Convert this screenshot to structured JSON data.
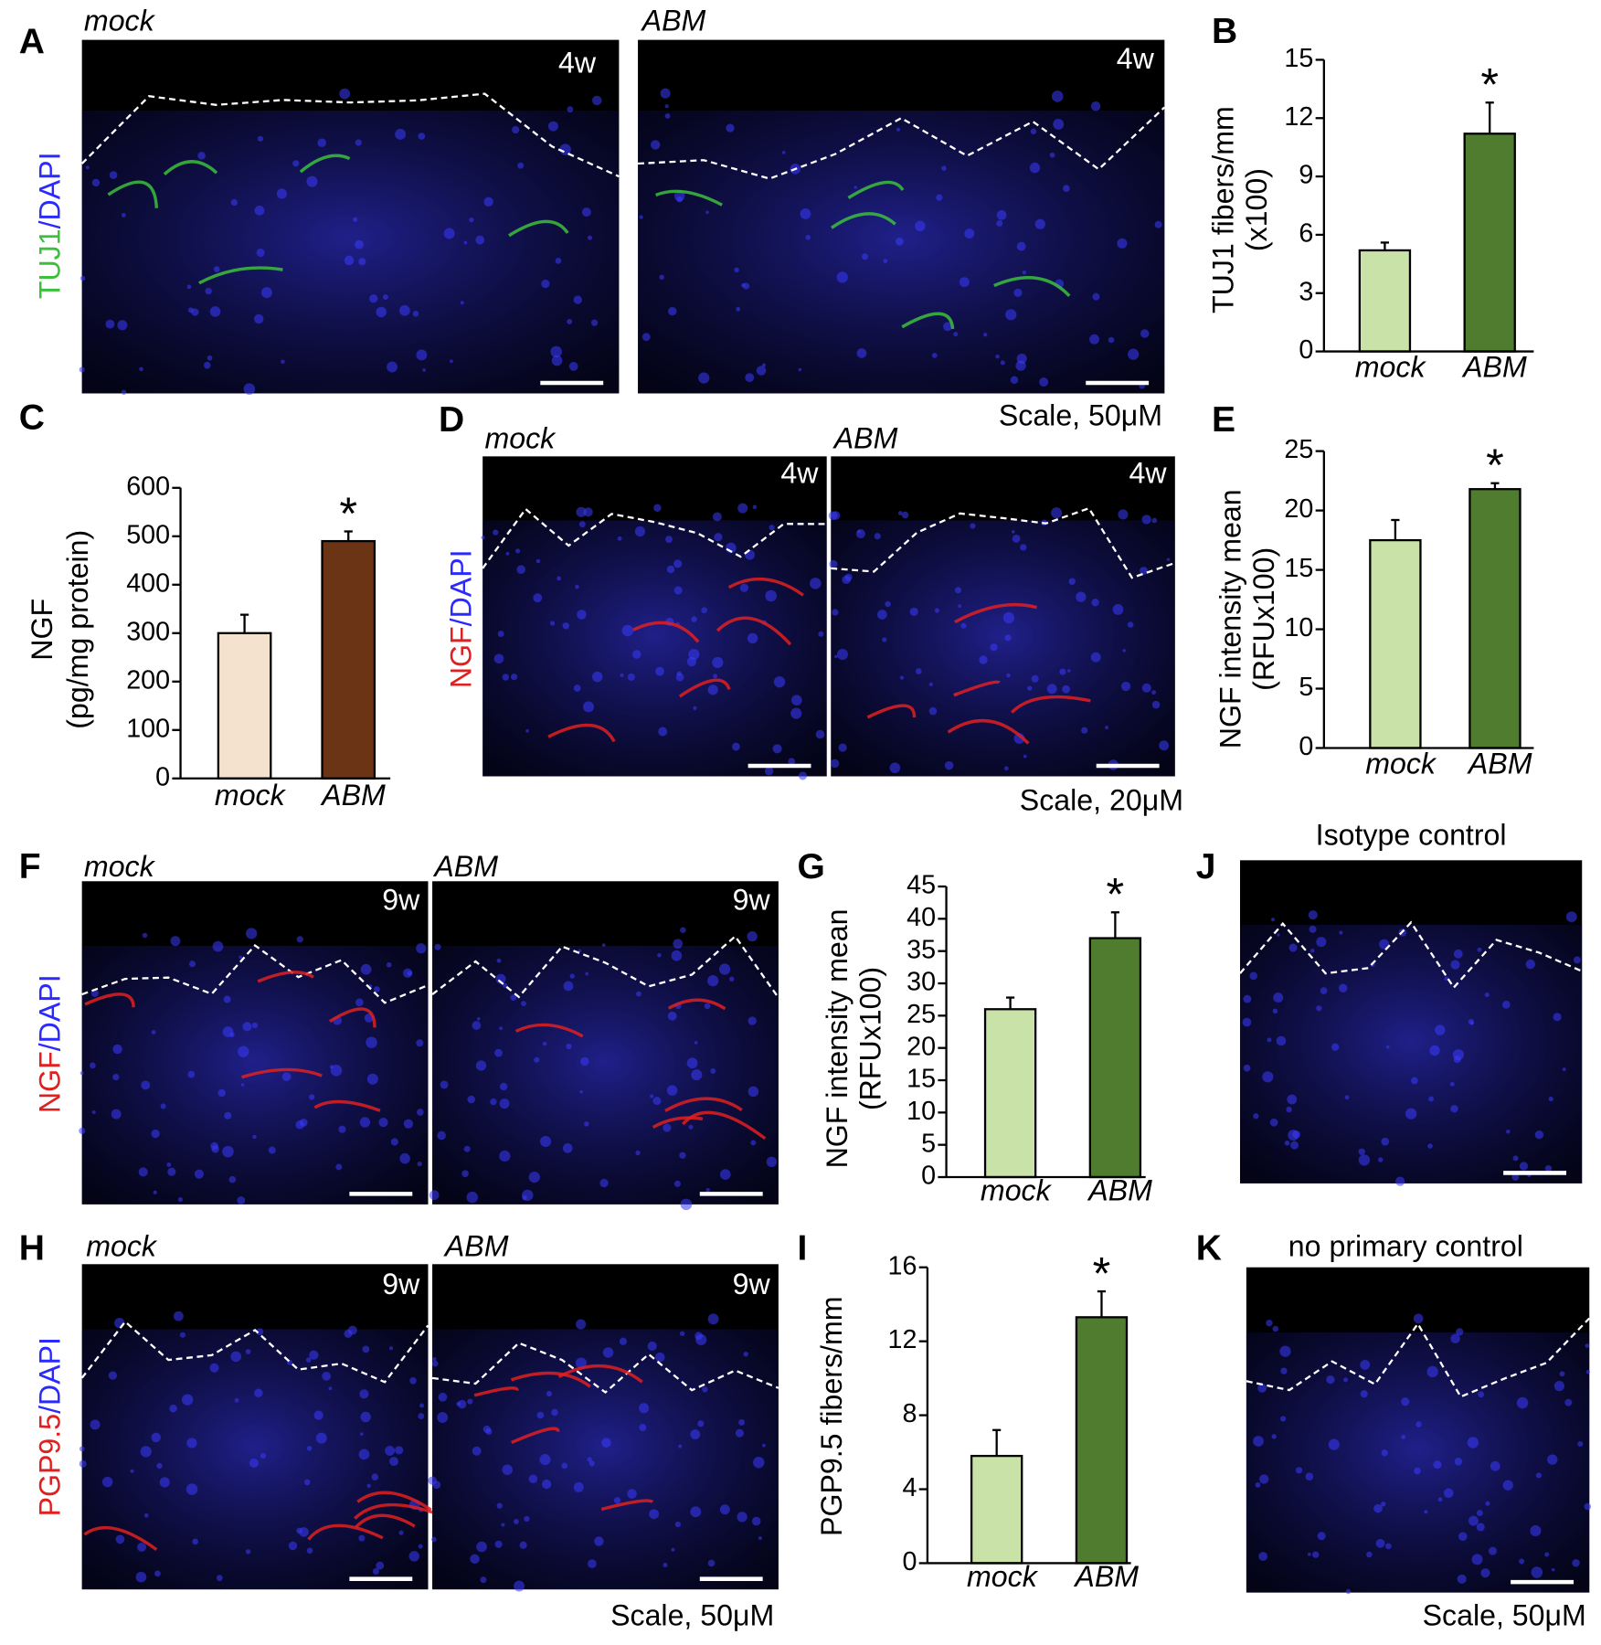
{
  "figure_panels": [
    {
      "panel": "A",
      "stain": [
        "TUJ1",
        "/DAPI"
      ],
      "marker_color": "#3cc03c",
      "images": [
        {
          "label": "mock",
          "time": "4w"
        },
        {
          "label": "ABM",
          "time": "4w"
        }
      ],
      "scale": "Scale, 50μM"
    },
    {
      "panel": "D",
      "stain": [
        "NGF",
        "/DAPI"
      ],
      "marker_color": "#e02020",
      "images": [
        {
          "label": "mock",
          "time": "4w"
        },
        {
          "label": "ABM",
          "time": "4w"
        }
      ],
      "scale": "Scale, 20μM"
    },
    {
      "panel": "F",
      "stain": [
        "NGF",
        "/DAPI"
      ],
      "marker_color": "#e02020",
      "images": [
        {
          "label": "mock",
          "time": "9w"
        },
        {
          "label": "ABM",
          "time": "9w"
        }
      ]
    },
    {
      "panel": "H",
      "stain": [
        "PGP9.5",
        "/DAPI"
      ],
      "marker_color": "#e02020",
      "images": [
        {
          "label": "mock",
          "time": "9w"
        },
        {
          "label": "ABM",
          "time": "9w"
        }
      ],
      "scale": "Scale, 50μM"
    },
    {
      "panel": "J",
      "title": "Isotype control"
    },
    {
      "panel": "K",
      "title": "no primary control",
      "scale": "Scale, 50μM"
    }
  ],
  "chart_data": [
    {
      "panel": "B",
      "type": "bar",
      "y_label": [
        "TUJ1 fibers/mm",
        "(x100)"
      ],
      "categories": [
        "mock",
        "ABM"
      ],
      "values": [
        5.2,
        11.2
      ],
      "errors": [
        0.4,
        1.6
      ],
      "colors": [
        "#c8e2a8",
        "#4f7c2e"
      ],
      "ylim": [
        0,
        15
      ],
      "yticks": [
        0,
        3,
        6,
        9,
        12,
        15
      ],
      "annotation": "*"
    },
    {
      "panel": "C",
      "type": "bar",
      "y_label": [
        "NGF",
        "(pg/mg  protein)"
      ],
      "categories": [
        "mock",
        "ABM"
      ],
      "values": [
        300,
        490
      ],
      "errors": [
        38,
        20
      ],
      "colors": [
        "#f4e2cf",
        "#6b3415"
      ],
      "ylim": [
        0,
        600
      ],
      "yticks": [
        0,
        100,
        200,
        300,
        400,
        500,
        600
      ],
      "annotation": "*"
    },
    {
      "panel": "E",
      "type": "bar",
      "y_label": [
        "NGF intensity mean",
        "(RFUx100)"
      ],
      "categories": [
        "mock",
        "ABM"
      ],
      "values": [
        17.5,
        21.8
      ],
      "errors": [
        1.7,
        0.5
      ],
      "colors": [
        "#c8e2a8",
        "#4f7c2e"
      ],
      "ylim": [
        0,
        25
      ],
      "yticks": [
        0,
        5,
        10,
        15,
        20,
        25
      ],
      "annotation": "*"
    },
    {
      "panel": "G",
      "type": "bar",
      "y_label": [
        "NGF intensity mean",
        "(RFUx100)"
      ],
      "categories": [
        "mock",
        "ABM"
      ],
      "values": [
        26,
        37
      ],
      "errors": [
        1.8,
        4
      ],
      "colors": [
        "#c8e2a8",
        "#4f7c2e"
      ],
      "ylim": [
        0,
        45
      ],
      "yticks": [
        0,
        5,
        10,
        15,
        20,
        25,
        30,
        35,
        40,
        45
      ],
      "annotation": "*"
    },
    {
      "panel": "I",
      "type": "bar",
      "y_label": [
        "PGP9.5 fibers/mm"
      ],
      "categories": [
        "mock",
        "ABM"
      ],
      "values": [
        5.8,
        13.3
      ],
      "errors": [
        1.4,
        1.4
      ],
      "colors": [
        "#c8e2a8",
        "#4f7c2e"
      ],
      "ylim": [
        0,
        16
      ],
      "yticks": [
        0,
        4,
        8,
        12,
        16
      ],
      "annotation": "*"
    }
  ]
}
